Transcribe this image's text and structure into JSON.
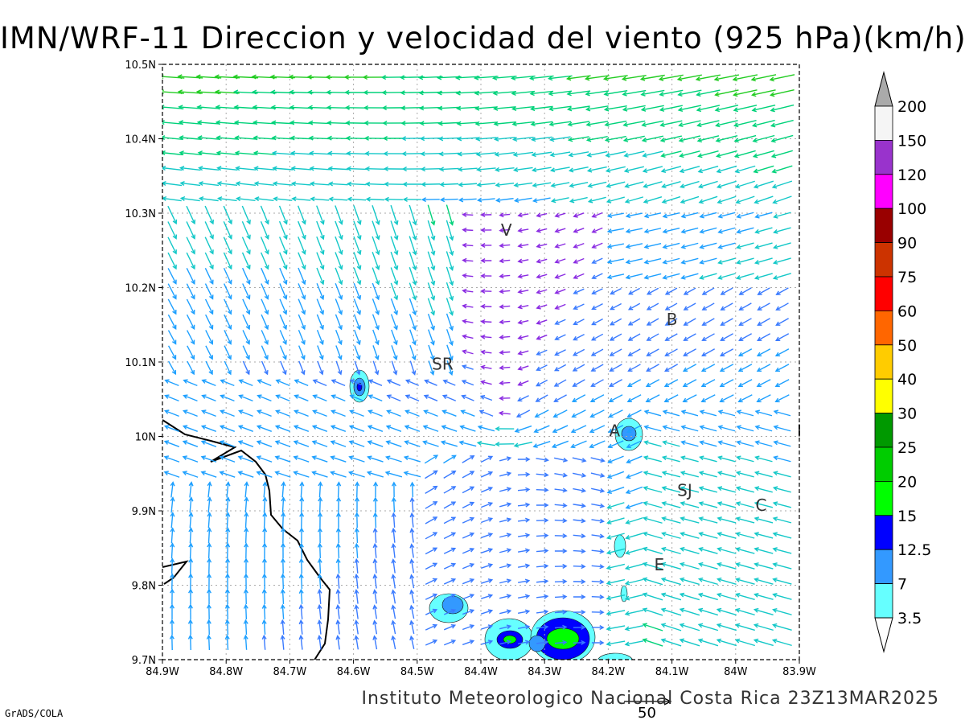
{
  "title": "IMN/WRF-11 Direccion y velocidad del viento (925 hPa)(km/h)",
  "credit": "Instituto Meteorologico Nacional Costa Rica 23Z13MAR2025",
  "software": "GrADS/COLA",
  "reference_vector_label": "50",
  "map": {
    "lon_range": [
      -84.9,
      -83.9
    ],
    "lat_range": [
      9.7,
      10.5
    ],
    "x_tick_labels": [
      "84.9W",
      "84.8W",
      "84.7W",
      "84.6W",
      "84.5W",
      "84.4W",
      "84.3W",
      "84.2W",
      "84.1W",
      "84W",
      "83.9W"
    ],
    "y_tick_labels": [
      "9.7N",
      "9.8N",
      "9.9N",
      "10N",
      "10.1N",
      "10.2N",
      "10.3N",
      "10.4N",
      "10.5N"
    ],
    "places": [
      {
        "label": "V",
        "lon": -84.36,
        "lat": 10.27
      },
      {
        "label": "B",
        "lon": -84.1,
        "lat": 10.15
      },
      {
        "label": "SR",
        "lon": -84.46,
        "lat": 10.09
      },
      {
        "label": "A",
        "lon": -84.19,
        "lat": 10.0
      },
      {
        "label": "I",
        "lon": -83.9,
        "lat": 10.0
      },
      {
        "label": "SJ",
        "lon": -84.08,
        "lat": 9.92
      },
      {
        "label": "C",
        "lon": -83.96,
        "lat": 9.9
      },
      {
        "label": "E",
        "lon": -84.12,
        "lat": 9.82
      }
    ]
  },
  "legend": {
    "levels": [
      "200",
      "150",
      "120",
      "100",
      "90",
      "75",
      "60",
      "50",
      "40",
      "30",
      "25",
      "20",
      "15",
      "12.5",
      "7",
      "3.5"
    ],
    "colors": [
      "#f5f5f5",
      "#9933cc",
      "#ff00ff",
      "#990000",
      "#cc3300",
      "#ff0000",
      "#ff6600",
      "#ffcc00",
      "#ffff00",
      "#009900",
      "#00cc00",
      "#00ff00",
      "#0000ff",
      "#3399ff",
      "#66ffff"
    ],
    "top_arrow_color": "#aaaaaa"
  },
  "wind_colors": {
    "calm": "#8a2be2",
    "c7": "#3a7bff",
    "c12": "#1ea0ff",
    "c15": "#14c8c8",
    "c20": "#00d27a",
    "c25": "#22cc22",
    "c30": "#88dd22",
    "c40": "#d6d230",
    "c50": "#f0a030",
    "c60": "#f06030",
    "c75": "#e81a3a"
  }
}
